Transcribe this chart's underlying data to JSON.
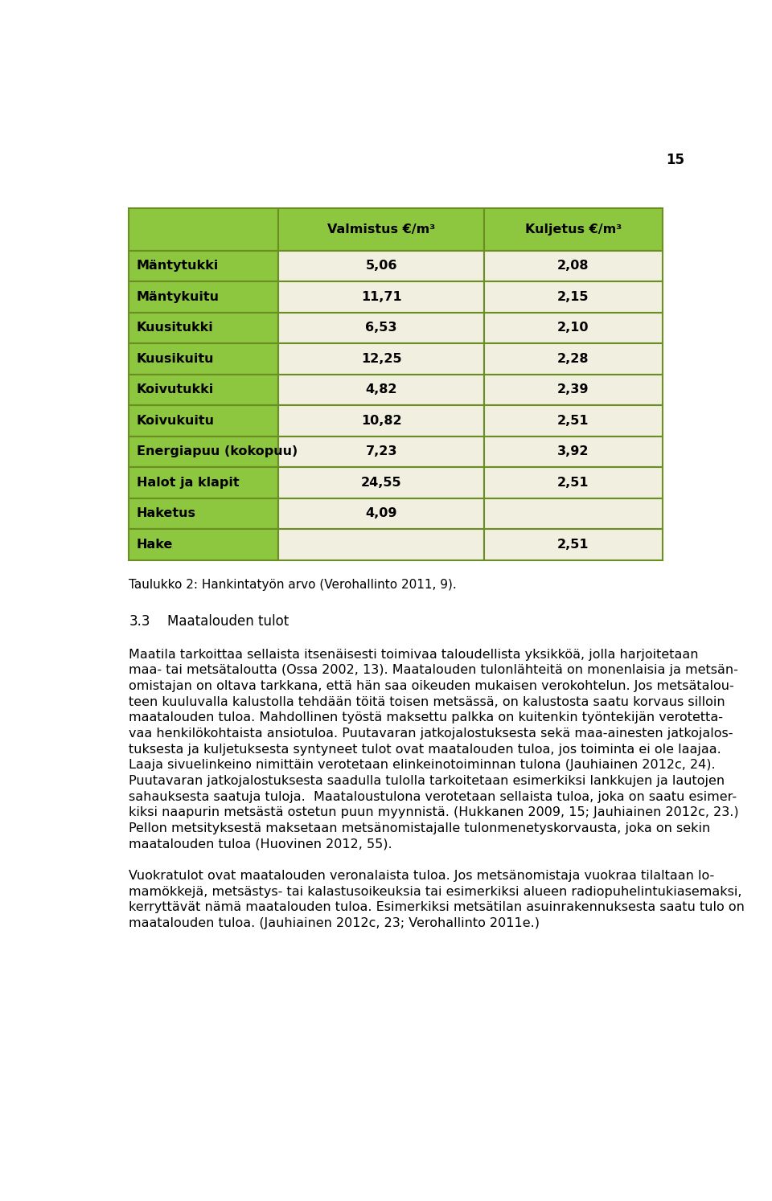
{
  "page_number": "15",
  "table": {
    "header_bg": "#8DC63F",
    "row_bg": "#F0EFE0",
    "border_color": "#6B8E23",
    "col1_header": "Valmistus €/m³",
    "col2_header": "Kuljetus €/m³",
    "rows": [
      {
        "label": "Mäntytukki",
        "val1": "5,06",
        "val2": "2,08"
      },
      {
        "label": "Mäntykuitu",
        "val1": "11,71",
        "val2": "2,15"
      },
      {
        "label": "Kuusitukki",
        "val1": "6,53",
        "val2": "2,10"
      },
      {
        "label": "Kuusikuitu",
        "val1": "12,25",
        "val2": "2,28"
      },
      {
        "label": "Koivutukki",
        "val1": "4,82",
        "val2": "2,39"
      },
      {
        "label": "Koivukuitu",
        "val1": "10,82",
        "val2": "2,51"
      },
      {
        "label": "Energiapuu (kokopuu)",
        "val1": "7,23",
        "val2": "3,92"
      },
      {
        "label": "Halot ja klapit",
        "val1": "24,55",
        "val2": "2,51"
      },
      {
        "label": "Haketus",
        "val1": "4,09",
        "val2": ""
      },
      {
        "label": "Hake",
        "val1": "",
        "val2": "2,51"
      }
    ]
  },
  "caption": "Taulukko 2: Hankintatyön arvo (Verohallinto 2011, 9).",
  "section_number": "3.3",
  "section_title": "Maatalouden tulot",
  "paragraph1_lines": [
    "Maatila tarkoittaa sellaista itsenäisesti toimivaa taloudellista yksikköä, jolla harjoitetaan",
    "maa- tai metsätaloutta (Ossa 2002, 13). Maatalouden tulonlähteitä on monenlaisia ja metsän-",
    "omistajan on oltava tarkkana, että hän saa oikeuden mukaisen verokohtelun. Jos metsätalou-",
    "teen kuuluvalla kalustolla tehdään töitä toisen metsässä, on kalustosta saatu korvaus silloin",
    "maatalouden tuloa. Mahdollinen työstä maksettu palkka on kuitenkin työntekijän verotetta-",
    "vaa henkilökohtaista ansiotuloa. Puutavaran jatkojalostuksesta sekä maa-ainesten jatkojalos-",
    "tuksesta ja kuljetuksesta syntyneet tulot ovat maatalouden tuloa, jos toiminta ei ole laajaa.",
    "Laaja sivuelinkeino nimittäin verotetaan elinkeinotoiminnan tulona (Jauhiainen 2012c, 24).",
    "Puutavaran jatkojalostuksesta saadulla tulolla tarkoitetaan esimerkiksi lankkujen ja lautojen",
    "sahauksesta saatuja tuloja.  Maataloustulona verotetaan sellaista tuloa, joka on saatu esimer-",
    "kiksi naapurin metsästä ostetun puun myynnistä. (Hukkanen 2009, 15; Jauhiainen 2012c, 23.)",
    "Pellon metsityksestä maksetaan metsänomistajalle tulonmenetyskorvausta, joka on sekin",
    "maatalouden tuloa (Huovinen 2012, 55)."
  ],
  "paragraph2_lines": [
    "Vuokratulot ovat maatalouden veronalaista tuloa. Jos metsänomistaja vuokraa tilaltaan lo-",
    "mamökkejä, metsästys- tai kalastusoikeuksia tai esimerkiksi alueen radiopuhelintukiasemaksi,",
    "kerryttävät nämä maatalouden tuloa. Esimerkiksi metsätilan asuinrakennuksesta saatu tulo on",
    "maatalouden tuloa. (Jauhiainen 2012c, 23; Verohallinto 2011e.)"
  ],
  "bg_color": "#FFFFFF",
  "font_size_table": 11.5,
  "font_size_text": 11.5,
  "font_size_heading": 12,
  "font_size_page": 12,
  "font_size_caption": 11
}
